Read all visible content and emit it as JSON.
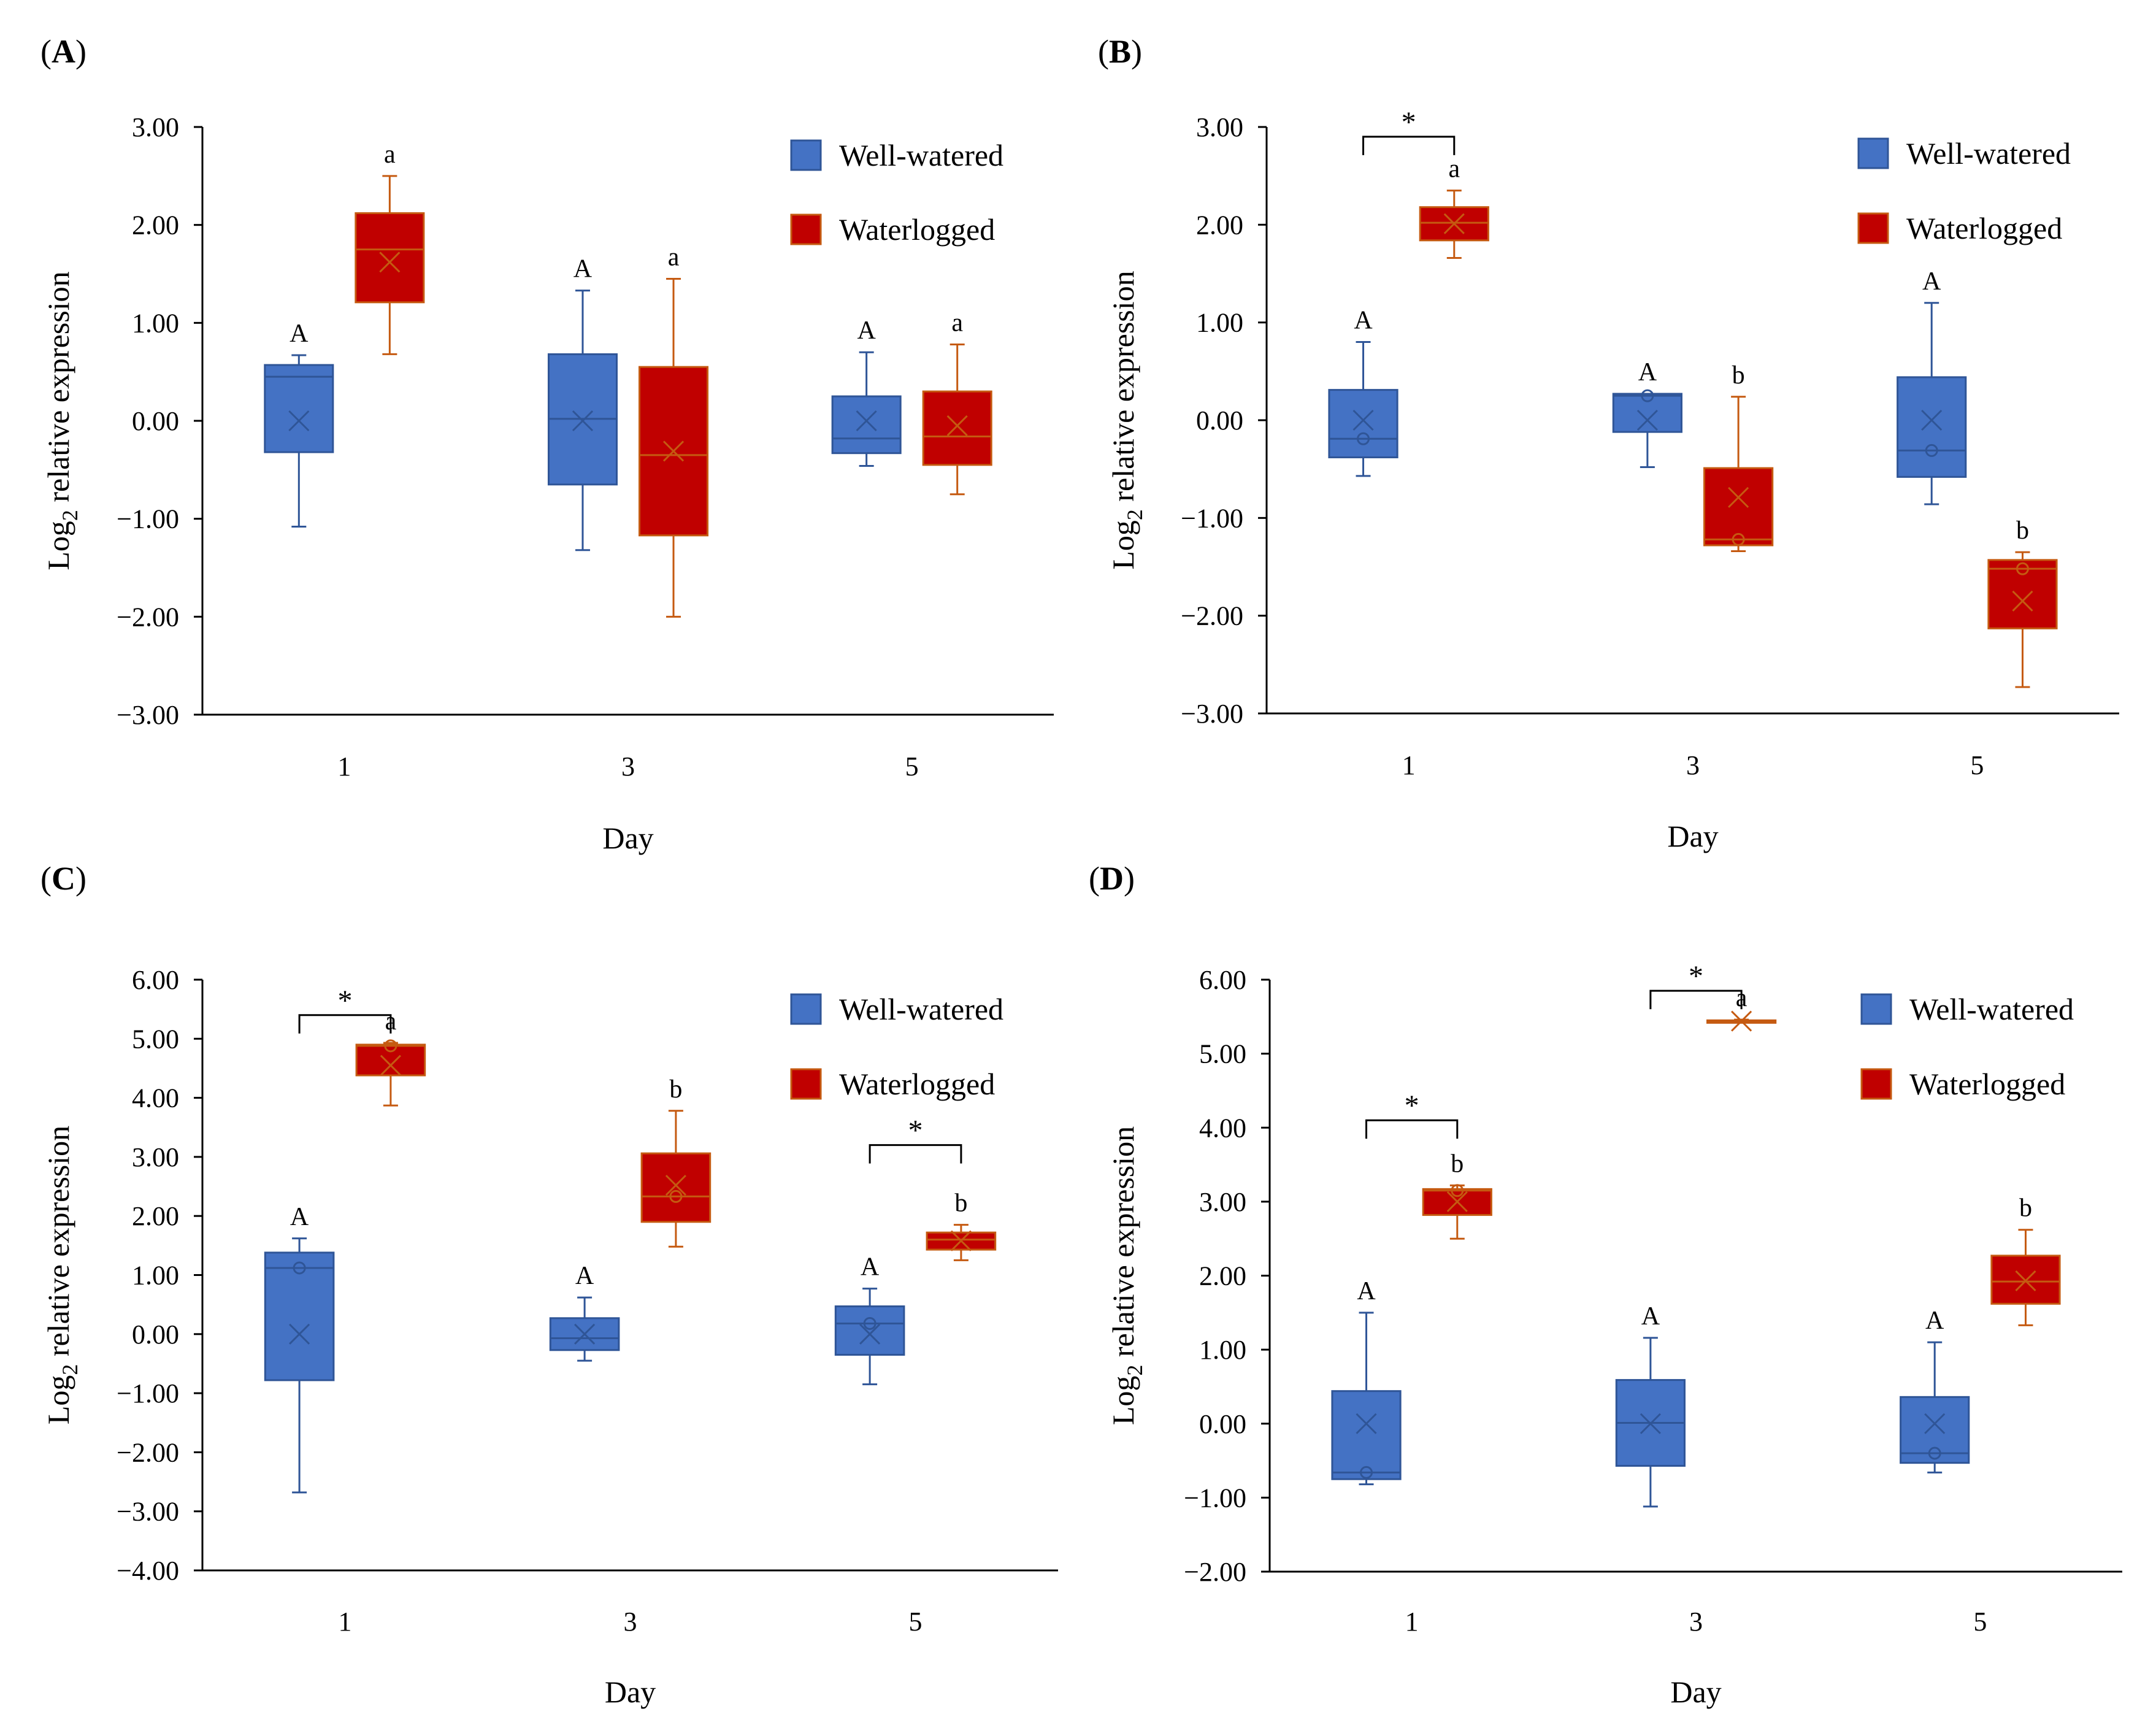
{
  "colors": {
    "well_fill": "#4472C4",
    "well_stroke": "#2F5597",
    "water_fill": "#C00000",
    "water_stroke": "#C55A11",
    "axis": "#000000"
  },
  "chart_data": [
    {
      "type": "box",
      "panel": "A",
      "panel_label": [
        "(",
        "A",
        ")"
      ],
      "title": "",
      "xlabel": "Day",
      "ylabel_main": "Log",
      "ylabel_sub": "2",
      "ylabel_rest": " relative expression",
      "ylim": [
        -3,
        3
      ],
      "yticks": [
        -3,
        -2,
        -1,
        0,
        1,
        2,
        3
      ],
      "ytick_labels": [
        "−3.00",
        "−2.00",
        "−1.00",
        "0.00",
        "1.00",
        "2.00",
        "3.00"
      ],
      "categories": [
        "1",
        "3",
        "5"
      ],
      "legend": [
        "Well-watered",
        "Waterlogged"
      ],
      "series": [
        {
          "name": "Well-watered",
          "boxes": [
            {
              "min": -1.08,
              "q1": -0.32,
              "median": 0.45,
              "q3": 0.57,
              "max": 0.67,
              "mean": 0.0,
              "outlier": null,
              "letter": "A"
            },
            {
              "min": -1.32,
              "q1": -0.65,
              "median": 0.02,
              "q3": 0.68,
              "max": 1.33,
              "mean": 0.0,
              "outlier": null,
              "letter": "A"
            },
            {
              "min": -0.46,
              "q1": -0.33,
              "median": -0.18,
              "q3": 0.25,
              "max": 0.7,
              "mean": 0.0,
              "outlier": null,
              "letter": "A"
            }
          ]
        },
        {
          "name": "Waterlogged",
          "boxes": [
            {
              "min": 0.68,
              "q1": 1.21,
              "median": 1.75,
              "q3": 2.12,
              "max": 2.5,
              "mean": 1.62,
              "outlier": null,
              "letter": "a"
            },
            {
              "min": -2.0,
              "q1": -1.17,
              "median": -0.35,
              "q3": 0.55,
              "max": 1.45,
              "mean": -0.31,
              "outlier": null,
              "letter": "a"
            },
            {
              "min": -0.75,
              "q1": -0.45,
              "median": -0.16,
              "q3": 0.3,
              "max": 0.78,
              "mean": -0.05,
              "outlier": null,
              "letter": "a"
            }
          ]
        }
      ],
      "brackets": []
    },
    {
      "type": "box",
      "panel": "B",
      "panel_label": [
        "(",
        "B",
        ")"
      ],
      "title": "",
      "xlabel": "Day",
      "ylabel_main": "Log",
      "ylabel_sub": "2",
      "ylabel_rest": " relative expression",
      "ylim": [
        -3,
        3
      ],
      "yticks": [
        -3,
        -2,
        -1,
        0,
        1,
        2,
        3
      ],
      "ytick_labels": [
        "−3.00",
        "−2.00",
        "−1.00",
        "0.00",
        "1.00",
        "2.00",
        "3.00"
      ],
      "categories": [
        "1",
        "3",
        "5"
      ],
      "legend": [
        "Well-watered",
        "Waterlogged"
      ],
      "series": [
        {
          "name": "Well-watered",
          "boxes": [
            {
              "min": -0.57,
              "q1": -0.38,
              "median": -0.19,
              "q3": 0.31,
              "max": 0.8,
              "mean": 0.0,
              "outlier": -0.19,
              "letter": "A"
            },
            {
              "min": -0.48,
              "q1": -0.12,
              "median": 0.25,
              "q3": 0.27,
              "max": 0.27,
              "mean": 0.0,
              "outlier": 0.25,
              "letter": "A"
            },
            {
              "min": -0.86,
              "q1": -0.58,
              "median": -0.31,
              "q3": 0.44,
              "max": 1.2,
              "mean": 0.0,
              "outlier": -0.31,
              "letter": "A"
            }
          ]
        },
        {
          "name": "Waterlogged",
          "boxes": [
            {
              "min": 1.66,
              "q1": 1.84,
              "median": 2.02,
              "q3": 2.18,
              "max": 2.35,
              "mean": 2.01,
              "outlier": null,
              "letter": "a"
            },
            {
              "min": -1.34,
              "q1": -1.28,
              "median": -1.22,
              "q3": -0.49,
              "max": 0.24,
              "mean": -0.79,
              "outlier": -1.22,
              "letter": "b"
            },
            {
              "min": -2.73,
              "q1": -2.13,
              "median": -1.52,
              "q3": -1.43,
              "max": -1.35,
              "mean": -1.85,
              "outlier": -1.52,
              "letter": "b"
            }
          ]
        }
      ],
      "brackets": [
        {
          "day_index": 0,
          "label": "*",
          "y": 2.9
        }
      ]
    },
    {
      "type": "box",
      "panel": "C",
      "panel_label": [
        "(",
        "C",
        ")"
      ],
      "title": "",
      "xlabel": "Day",
      "ylabel_main": "Log",
      "ylabel_sub": "2",
      "ylabel_rest": " relative expression",
      "ylim": [
        -4,
        6
      ],
      "yticks": [
        -4,
        -3,
        -2,
        -1,
        0,
        1,
        2,
        3,
        4,
        5,
        6
      ],
      "ytick_labels": [
        "−4.00",
        "−3.00",
        "−2.00",
        "−1.00",
        "0.00",
        "1.00",
        "2.00",
        "3.00",
        "4.00",
        "5.00",
        "6.00"
      ],
      "categories": [
        "1",
        "3",
        "5"
      ],
      "legend": [
        "Well-watered",
        "Waterlogged"
      ],
      "series": [
        {
          "name": "Well-watered",
          "boxes": [
            {
              "min": -2.68,
              "q1": -0.78,
              "median": 1.12,
              "q3": 1.38,
              "max": 1.62,
              "mean": 0.0,
              "outlier": 1.12,
              "letter": "A"
            },
            {
              "min": -0.45,
              "q1": -0.27,
              "median": -0.07,
              "q3": 0.27,
              "max": 0.62,
              "mean": 0.0,
              "outlier": null,
              "letter": "A"
            },
            {
              "min": -0.85,
              "q1": -0.35,
              "median": 0.18,
              "q3": 0.47,
              "max": 0.77,
              "mean": 0.0,
              "outlier": 0.18,
              "letter": "A"
            }
          ]
        },
        {
          "name": "Waterlogged",
          "boxes": [
            {
              "min": 3.87,
              "q1": 4.38,
              "median": 4.88,
              "q3": 4.9,
              "max": 4.93,
              "mean": 4.55,
              "outlier": 4.88,
              "letter": "a"
            },
            {
              "min": 1.48,
              "q1": 1.9,
              "median": 2.33,
              "q3": 3.06,
              "max": 3.78,
              "mean": 2.52,
              "outlier": 2.33,
              "letter": "b"
            },
            {
              "min": 1.25,
              "q1": 1.43,
              "median": 1.6,
              "q3": 1.72,
              "max": 1.85,
              "mean": 1.58,
              "outlier": null,
              "letter": "b"
            }
          ]
        }
      ],
      "brackets": [
        {
          "day_index": 0,
          "label": "*",
          "y": 5.4
        },
        {
          "day_index": 2,
          "label": "*",
          "y": 3.2
        }
      ]
    },
    {
      "type": "box",
      "panel": "D",
      "panel_label": [
        "(",
        "D",
        ")"
      ],
      "title": "",
      "xlabel": "Day",
      "ylabel_main": "Log",
      "ylabel_sub": "2",
      "ylabel_rest": " relative expression",
      "ylim": [
        -2,
        6
      ],
      "yticks": [
        -2,
        -1,
        0,
        1,
        2,
        3,
        4,
        5,
        6
      ],
      "ytick_labels": [
        "−2.00",
        "−1.00",
        "0.00",
        "1.00",
        "2.00",
        "3.00",
        "4.00",
        "5.00",
        "6.00"
      ],
      "categories": [
        "1",
        "3",
        "5"
      ],
      "legend": [
        "Well-watered",
        "Waterlogged"
      ],
      "series": [
        {
          "name": "Well-watered",
          "boxes": [
            {
              "min": -0.82,
              "q1": -0.75,
              "median": -0.66,
              "q3": 0.44,
              "max": 1.5,
              "mean": 0.0,
              "outlier": -0.66,
              "letter": "A"
            },
            {
              "min": -1.12,
              "q1": -0.57,
              "median": 0.01,
              "q3": 0.59,
              "max": 1.16,
              "mean": 0.0,
              "outlier": null,
              "letter": "A"
            },
            {
              "min": -0.66,
              "q1": -0.53,
              "median": -0.4,
              "q3": 0.36,
              "max": 1.1,
              "mean": 0.0,
              "outlier": -0.4,
              "letter": "A"
            }
          ]
        },
        {
          "name": "Waterlogged",
          "boxes": [
            {
              "min": 2.5,
              "q1": 2.82,
              "median": 3.15,
              "q3": 3.17,
              "max": 3.22,
              "mean": 3.0,
              "outlier": 3.15,
              "letter": "b"
            },
            {
              "min": 5.42,
              "q1": 5.43,
              "median": 5.44,
              "q3": 5.45,
              "max": 5.46,
              "mean": 5.44,
              "outlier": null,
              "letter": "a"
            },
            {
              "min": 1.33,
              "q1": 1.62,
              "median": 1.92,
              "q3": 2.27,
              "max": 2.62,
              "mean": 1.93,
              "outlier": null,
              "letter": "b"
            }
          ]
        }
      ],
      "brackets": [
        {
          "day_index": 0,
          "label": "*",
          "y": 4.1
        },
        {
          "day_index": 1,
          "label": "*",
          "y": 5.85
        }
      ]
    }
  ]
}
